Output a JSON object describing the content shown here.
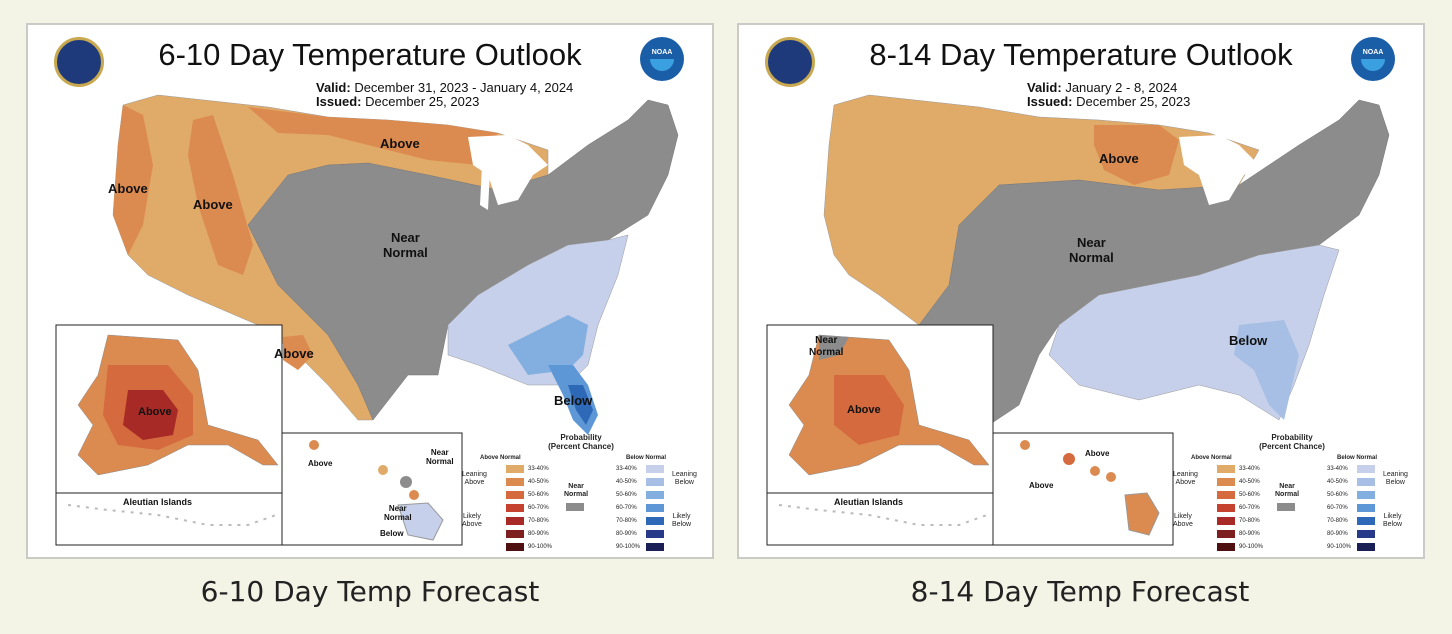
{
  "colors": {
    "page_bg": "#f3f3e6",
    "above_33_40": "#e0aa68",
    "above_40_50": "#dc8b50",
    "above_50_60": "#d46a3e",
    "above_60_70": "#c5422e",
    "above_70_80": "#a72a27",
    "above_80_90": "#7e1f1f",
    "above_90_100": "#4e1010",
    "below_33_40": "#c6d0ea",
    "below_40_50": "#a7bfe4",
    "below_50_60": "#82aee0",
    "below_60_70": "#5e97d6",
    "below_70_80": "#2e69b8",
    "below_80_90": "#273a8a",
    "below_90_100": "#1a1f55",
    "near_normal": "#8c8c8c"
  },
  "left": {
    "title": "6-10 Day Temperature Outlook",
    "valid_label": "Valid:",
    "valid_value": "December 31, 2023 - January 4, 2024",
    "issued_label": "Issued:",
    "issued_value": "December 25, 2023",
    "labels": {
      "above_west": "Above",
      "above_rockies": "Above",
      "above_north": "Above",
      "near_normal": "Near\nNormal",
      "above_south": "Above",
      "below": "Below",
      "alaska_above": "Above",
      "aleutian": "Aleutian Islands",
      "hawaii_above": "Above",
      "hawaii_near_normal_1": "Near\nNormal",
      "hawaii_near_normal_2": "Near\nNormal",
      "hawaii_below": "Below"
    },
    "caption": "6-10 Day Temp Forecast"
  },
  "right": {
    "title": "8-14 Day Temperature Outlook",
    "valid_label": "Valid:",
    "valid_value": "January 2 - 8, 2024",
    "issued_label": "Issued:",
    "issued_value": "December 25, 2023",
    "labels": {
      "above_north": "Above",
      "near_normal": "Near\nNormal",
      "below": "Below",
      "alaska_near_normal": "Near\nNormal",
      "alaska_above": "Above",
      "aleutian": "Aleutian Islands",
      "hawaii_above_1": "Above",
      "hawaii_above_2": "Above"
    },
    "caption": "8-14 Day Temp Forecast"
  },
  "legend": {
    "title": "Probability\n(Percent Chance)",
    "above_head": "Above Normal",
    "below_head": "Below Normal",
    "leaning_above": "Leaning\nAbove",
    "likely_above": "Likely\nAbove",
    "leaning_below": "Leaning\nBelow",
    "likely_below": "Likely\nBelow",
    "near_normal": "Near\nNormal",
    "ranges": [
      "33-40%",
      "40-50%",
      "50-60%",
      "60-70%",
      "70-80%",
      "80-90%",
      "90-100%"
    ]
  },
  "logos": {
    "left_seal": "doc-seal-icon",
    "right_seal": "noaa-logo-icon",
    "noaa_text": "NOAA"
  }
}
